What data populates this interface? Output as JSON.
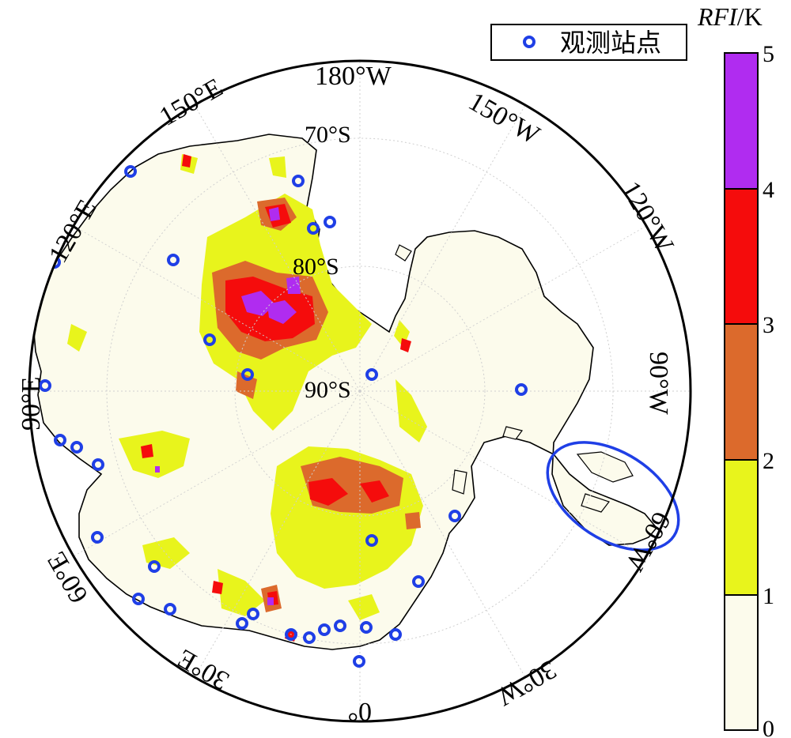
{
  "legend": {
    "symbol_name": "station-circle-icon",
    "symbol_color": "#1f3fe6",
    "label": "观测站点"
  },
  "colorbar": {
    "title_var": "RFI",
    "title_unit": "/K",
    "ticks": [
      "0",
      "1",
      "2",
      "3",
      "4",
      "5"
    ],
    "bands": [
      {
        "from": 0,
        "to": 1,
        "color": "#fcfbec"
      },
      {
        "from": 1,
        "to": 2,
        "color": "#e8f41c"
      },
      {
        "from": 2,
        "to": 3,
        "color": "#dc6a2c"
      },
      {
        "from": 3,
        "to": 4,
        "color": "#f50c0c"
      },
      {
        "from": 4,
        "to": 5,
        "color": "#b02cf0"
      }
    ]
  },
  "map": {
    "projection": "south-polar-stereographic",
    "pole_label": "90°S",
    "lat_labels": [
      "70°S",
      "80°S"
    ],
    "lon_labels": {
      "lon_180": "180°W",
      "lon_150w": "150°W",
      "lon_120w": "120°W",
      "lon_90w": "90°W",
      "lon_60w": "60°W",
      "lon_30w": "30°W",
      "lon_0": "0°",
      "lon_30e": "30°E",
      "lon_60e": "60°E",
      "lon_90e": "90°E",
      "lon_120e": "120°E",
      "lon_150e": "150°E"
    },
    "colors": {
      "ocean": "#ffffff",
      "land": "#fcfbec",
      "coast": "#000000",
      "highlight_ellipse": "#1f3fe6"
    },
    "highlight_region": "Antarctic Peninsula"
  }
}
